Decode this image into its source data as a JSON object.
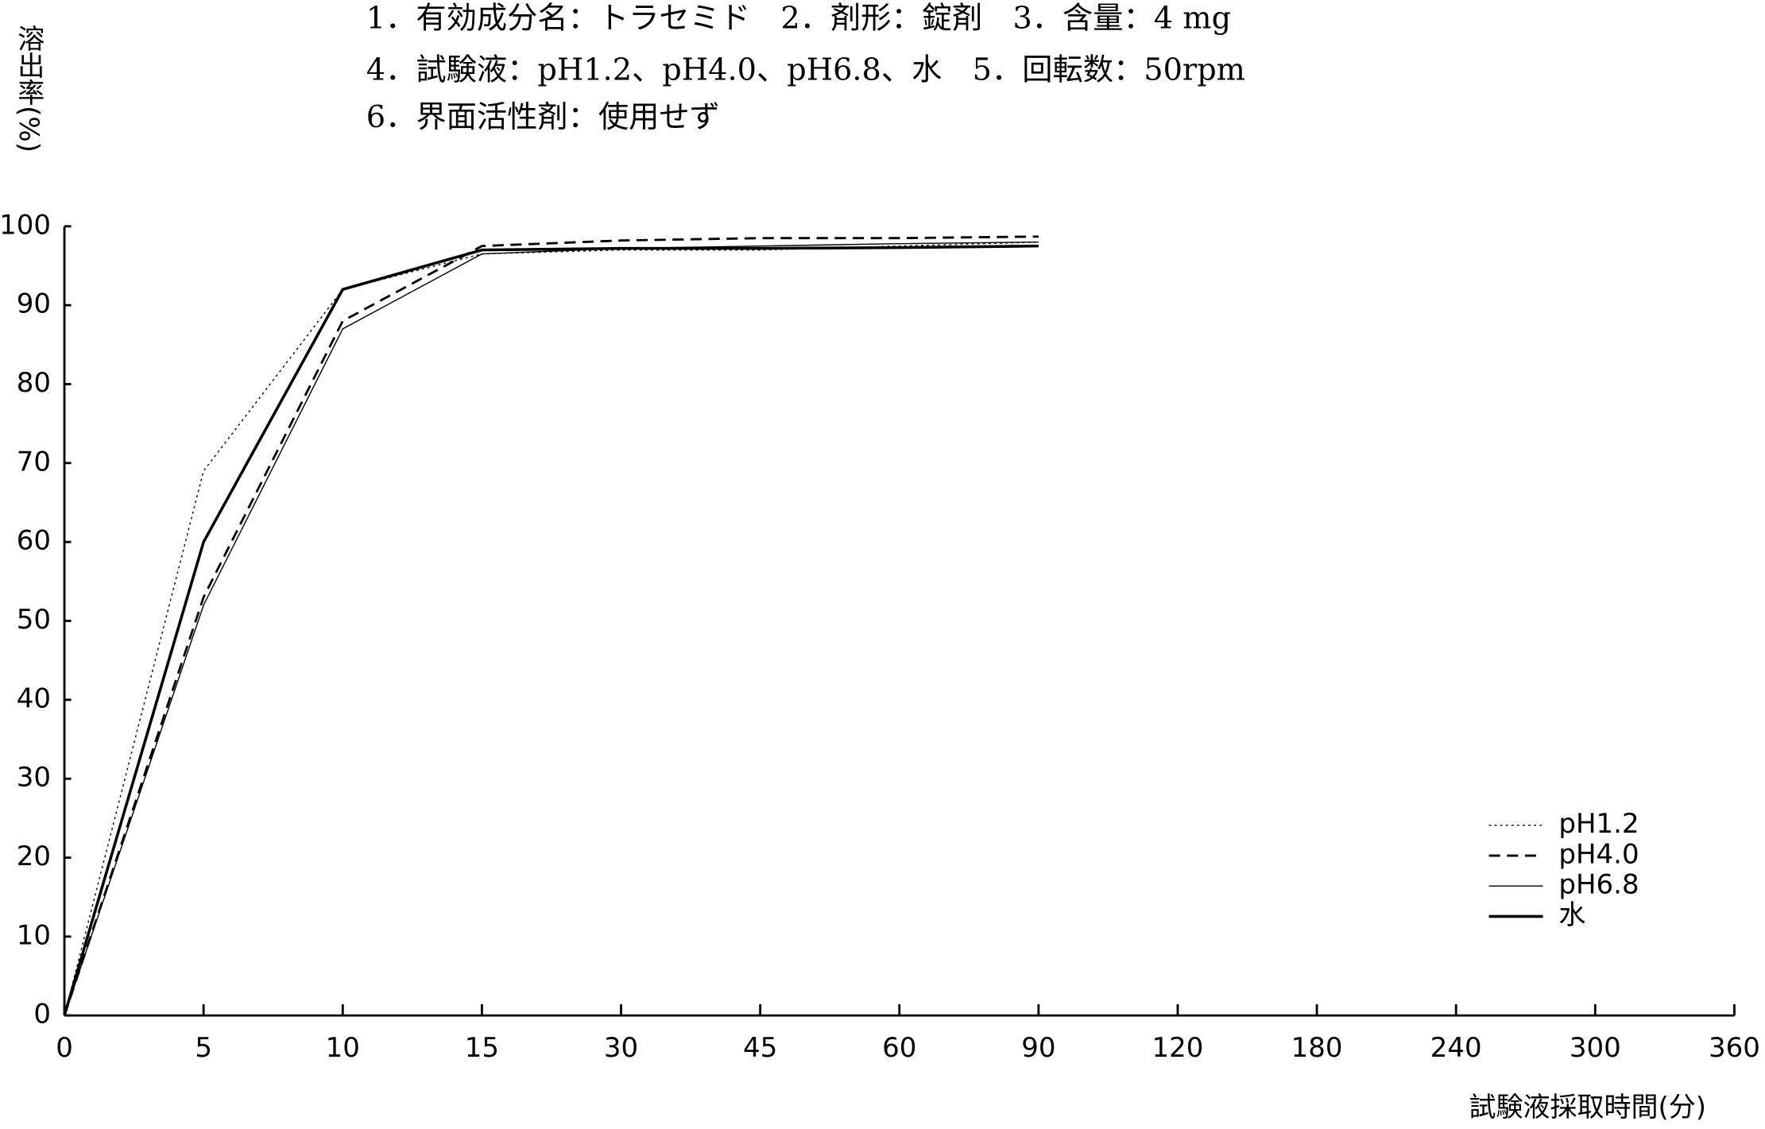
{
  "chart_data": {
    "type": "line",
    "annotations": [
      "1．有効成分名：トラセミド　2．剤形：錠剤　3．含量：4 mg",
      "4．試験液：pH1.2、pH4.0、pH6.8、水　5．回転数：50rpm",
      "6．界面活性剤：使用せず"
    ],
    "ylabel": "溶出率(%)",
    "xlabel": "試験液採取時間(分)",
    "categories": [
      "0",
      "5",
      "10",
      "15",
      "30",
      "45",
      "60",
      "90",
      "120",
      "180",
      "240",
      "300",
      "360"
    ],
    "ylim": [
      0,
      100
    ],
    "yticks": [
      0,
      10,
      20,
      30,
      40,
      50,
      60,
      70,
      80,
      90,
      100
    ],
    "grid": false,
    "legend": "lower right",
    "series": [
      {
        "name": "pH1.2",
        "color": "#000000",
        "style": "dotted",
        "values": [
          0,
          69,
          92,
          96.5,
          97,
          97,
          97.5,
          98,
          null,
          null,
          null,
          null,
          null
        ]
      },
      {
        "name": "pH4.0",
        "color": "#000000",
        "style": "dashed",
        "values": [
          0,
          53,
          88,
          97.5,
          98.2,
          98.5,
          98.5,
          98.7,
          null,
          null,
          null,
          null,
          null
        ]
      },
      {
        "name": "pH6.8",
        "color": "#000000",
        "style": "thin",
        "values": [
          0,
          52,
          87,
          96.5,
          97.2,
          97.5,
          97.8,
          98,
          null,
          null,
          null,
          null,
          null
        ]
      },
      {
        "name": "水",
        "color": "#000000",
        "style": "thick",
        "values": [
          0,
          60,
          92,
          97,
          97.2,
          97.2,
          97.3,
          97.5,
          null,
          null,
          null,
          null,
          null
        ]
      }
    ]
  }
}
